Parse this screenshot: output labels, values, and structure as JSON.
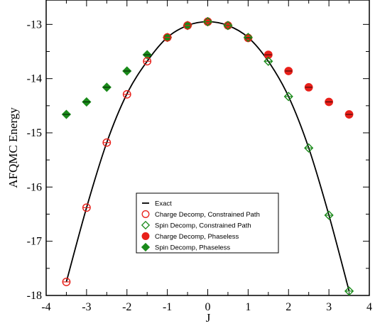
{
  "chart_data": {
    "type": "scatter",
    "title": "",
    "xlabel": "J",
    "ylabel": "AFQMC Energy",
    "xlim": [
      -4,
      4
    ],
    "ylim": [
      -18,
      -12.55
    ],
    "x_ticks": [
      -4,
      -3,
      -2,
      -1,
      0,
      1,
      2,
      3,
      4
    ],
    "y_ticks": [
      -18,
      -17,
      -16,
      -15,
      -14,
      -13
    ],
    "x_tick_labels": [
      "-4",
      "-3",
      "-2",
      "-1",
      "0",
      "1",
      "2",
      "3",
      "4"
    ],
    "y_tick_labels": [
      "-18",
      "-17",
      "-16",
      "-15",
      "-14",
      "-13"
    ],
    "grid": false,
    "legend_position": "lower-center",
    "series": [
      {
        "name": "Exact",
        "kind": "line",
        "color": "#000000",
        "x": [
          -3.5,
          -3.0,
          -2.5,
          -2.0,
          -1.5,
          -1.0,
          -0.5,
          0.0,
          0.5,
          1.0,
          1.5,
          2.0,
          2.5,
          3.0,
          3.5
        ],
        "y": [
          -17.75,
          -16.38,
          -15.18,
          -14.28,
          -13.68,
          -13.24,
          -13.02,
          -12.95,
          -13.02,
          -13.24,
          -13.68,
          -14.33,
          -15.28,
          -16.52,
          -17.92
        ]
      },
      {
        "name": "Charge Decomp, Constrained Path",
        "kind": "open-circle",
        "color": "#e8201a",
        "x": [
          -3.5,
          -3.0,
          -2.5,
          -2.0,
          -1.5,
          -1.0,
          -0.5,
          0.0
        ],
        "y": [
          -17.75,
          -16.38,
          -15.18,
          -14.29,
          -13.68,
          -13.24,
          -13.02,
          -12.95
        ]
      },
      {
        "name": "Spin Decomp, Constrained Path",
        "kind": "open-diamond",
        "color": "#1a8a1a",
        "x": [
          0.0,
          0.5,
          1.0,
          1.5,
          2.0,
          2.5,
          3.0,
          3.5
        ],
        "y": [
          -12.95,
          -13.02,
          -13.24,
          -13.68,
          -14.33,
          -15.28,
          -16.52,
          -17.92
        ]
      },
      {
        "name": "Charge Decomp, Phaseless",
        "kind": "filled-circle",
        "color": "#e8201a",
        "x": [
          0.0,
          0.5,
          1.0,
          1.5,
          2.0,
          2.5,
          3.0,
          3.5
        ],
        "y": [
          -12.95,
          -13.02,
          -13.25,
          -13.56,
          -13.86,
          -14.16,
          -14.43,
          -14.66
        ]
      },
      {
        "name": "Spin Decomp, Phaseless",
        "kind": "filled-diamond",
        "color": "#1a8a1a",
        "x": [
          -3.5,
          -3.0,
          -2.5,
          -2.0,
          -1.5,
          -1.0,
          -0.5,
          0.0
        ],
        "y": [
          -14.66,
          -14.43,
          -14.16,
          -13.86,
          -13.56,
          -13.24,
          -13.02,
          -12.95
        ]
      }
    ]
  }
}
